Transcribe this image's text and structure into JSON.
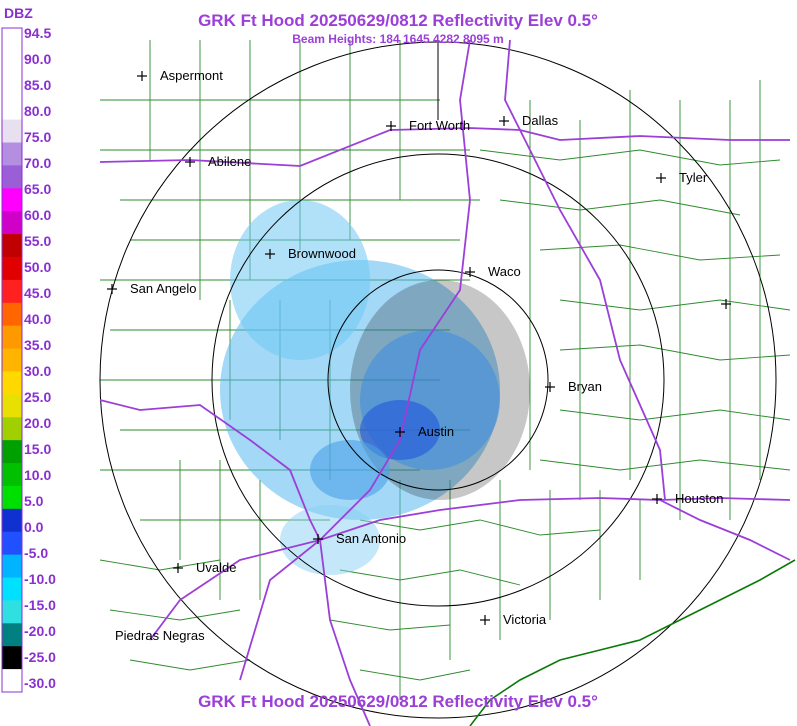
{
  "header": {
    "title": "GRK Ft Hood 20250629/0812 Reflectivity Elev 0.5°",
    "subtitle": "Beam Heights: 184 1645 4282 8095 m",
    "footer_title": "GRK Ft Hood 20250629/0812 Reflectivity Elev 0.5°"
  },
  "legend": {
    "unit": "DBZ",
    "labels": [
      "94.5",
      "90.0",
      "85.0",
      "80.0",
      "75.0",
      "70.0",
      "65.0",
      "60.0",
      "55.0",
      "50.0",
      "45.0",
      "40.0",
      "35.0",
      "30.0",
      "25.0",
      "20.0",
      "15.0",
      "10.0",
      "5.0",
      "0.0",
      "-5.0",
      "-10.0",
      "-15.0",
      "-20.0",
      "-25.0",
      "-30.0"
    ],
    "colors": [
      "#ffffff",
      "#ffffff",
      "#ffffff",
      "#ffffff",
      "#e8e0f0",
      "#b48ee0",
      "#9a5ed6",
      "#ff00ff",
      "#d000c8",
      "#c00000",
      "#e00000",
      "#ff2020",
      "#ff6600",
      "#ff9900",
      "#ffb400",
      "#ffd800",
      "#e8e000",
      "#a0d000",
      "#00a000",
      "#00c000",
      "#00e000",
      "#1030d0",
      "#2050ff",
      "#00b4ff",
      "#00e0ff",
      "#30e0e0",
      "#008080",
      "#000000",
      "#ffffff"
    ]
  },
  "map": {
    "cities": [
      {
        "name": "Aspermont",
        "label": "Aspermont"
      },
      {
        "name": "Fort Worth",
        "label": "Fort Worth"
      },
      {
        "name": "Dallas",
        "label": "Dallas"
      },
      {
        "name": "Abilene",
        "label": "Abilene"
      },
      {
        "name": "Tyler",
        "label": "Tyler"
      },
      {
        "name": "Brownwood",
        "label": "Brownwood"
      },
      {
        "name": "Waco",
        "label": "Waco"
      },
      {
        "name": "San Angelo",
        "label": "San Angelo"
      },
      {
        "name": "Bryan",
        "label": "Bryan"
      },
      {
        "name": "Austin",
        "label": "Austin"
      },
      {
        "name": "Houston",
        "label": "Houston"
      },
      {
        "name": "San Antonio",
        "label": "San Antonio"
      },
      {
        "name": "Uvalde",
        "label": "Uvalde"
      },
      {
        "name": "Victoria",
        "label": "Victoria"
      },
      {
        "name": "Piedras Negras",
        "label": "Piedras Negras"
      },
      {
        "name": "Unlabeled",
        "label": ""
      }
    ],
    "colors": {
      "county_lines": "#2e8b2e",
      "highways": "#9b3fd8",
      "range_rings": "#000000",
      "coastline": "#0a7a0a"
    }
  }
}
